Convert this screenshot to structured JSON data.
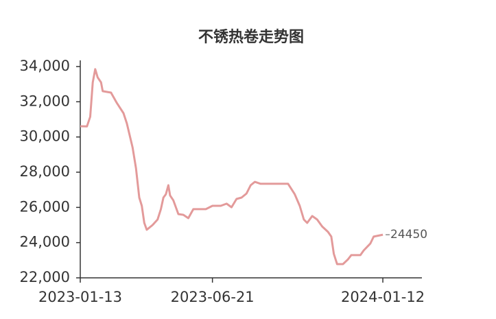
{
  "chart_data": {
    "type": "line",
    "title": "不锈热卷走势图",
    "x": [
      "2023-01-13",
      "2023-01-21",
      "2023-01-25",
      "2023-01-28",
      "2023-01-31",
      "2023-02-03",
      "2023-02-07",
      "2023-02-09",
      "2023-02-19",
      "2023-02-26",
      "2023-03-06",
      "2023-03-10",
      "2023-03-17",
      "2023-03-21",
      "2023-03-25",
      "2023-03-28",
      "2023-03-31",
      "2023-04-03",
      "2023-04-10",
      "2023-04-16",
      "2023-04-20",
      "2023-04-23",
      "2023-04-26",
      "2023-04-29",
      "2023-05-01",
      "2023-05-05",
      "2023-05-11",
      "2023-05-17",
      "2023-05-23",
      "2023-05-29",
      "2023-06-13",
      "2023-06-21",
      "2023-07-01",
      "2023-07-08",
      "2023-07-14",
      "2023-07-20",
      "2023-07-26",
      "2023-08-01",
      "2023-08-06",
      "2023-08-11",
      "2023-08-18",
      "2023-09-04",
      "2023-09-20",
      "2023-09-28",
      "2023-10-04",
      "2023-10-09",
      "2023-10-13",
      "2023-10-19",
      "2023-10-25",
      "2023-10-31",
      "2023-11-07",
      "2023-11-11",
      "2023-11-14",
      "2023-11-18",
      "2023-11-25",
      "2023-12-01",
      "2023-12-05",
      "2023-12-16",
      "2023-12-20",
      "2023-12-28",
      "2024-01-01",
      "2024-01-12"
    ],
    "series": [
      {
        "color": "#e39a9a",
        "values": [
          30610,
          30600,
          31150,
          33100,
          33850,
          33380,
          33100,
          32600,
          32520,
          31930,
          31350,
          30770,
          29400,
          28230,
          26560,
          26090,
          25120,
          24730,
          25000,
          25310,
          25900,
          26560,
          26750,
          27260,
          26680,
          26400,
          25620,
          25580,
          25390,
          25900,
          25900,
          26090,
          26090,
          26210,
          26010,
          26480,
          26560,
          26790,
          27260,
          27450,
          27340,
          27340,
          27340,
          26750,
          26090,
          25310,
          25120,
          25510,
          25310,
          24920,
          24610,
          24340,
          23360,
          22780,
          22780,
          23050,
          23290,
          23290,
          23560,
          23950,
          24340,
          24450
        ]
      }
    ],
    "xlim": [
      "2023-01-13",
      "2024-02-28"
    ],
    "xticks": [
      "2023-01-13",
      "2023-06-21",
      "2024-01-12"
    ],
    "ylim": [
      22000,
      34000
    ],
    "yticks": [
      {
        "value": 22000,
        "label": "22,000"
      },
      {
        "value": 24000,
        "label": "24,000"
      },
      {
        "value": 26000,
        "label": "26,000"
      },
      {
        "value": 28000,
        "label": "28,000"
      },
      {
        "value": 30000,
        "label": "30,000"
      },
      {
        "value": 32000,
        "label": "32,000"
      },
      {
        "value": 34000,
        "label": "34,000"
      }
    ]
  }
}
